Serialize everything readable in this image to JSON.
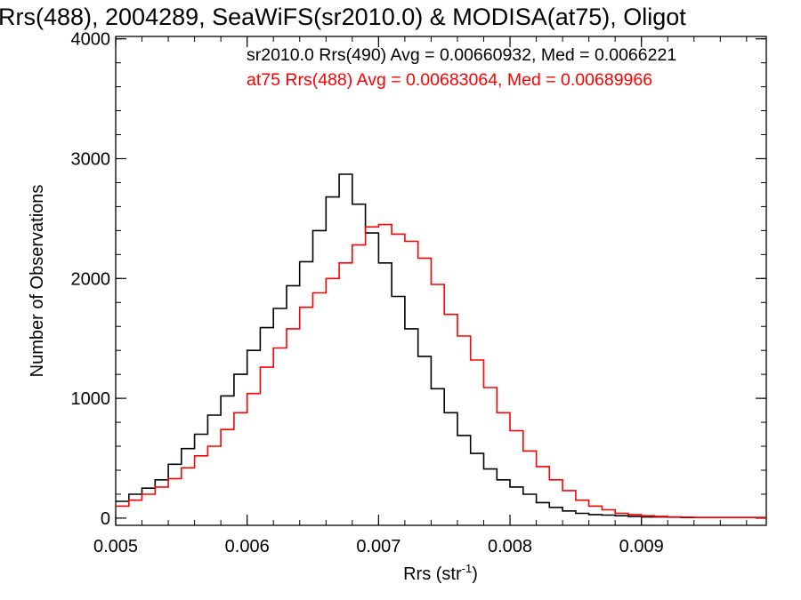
{
  "chart_data": {
    "type": "line",
    "title": "Rrs(488), 2004289, SeaWiFS(sr2010.0) & MODISA(at75), Oligot",
    "xlabel": "Rrs (str",
    "xlabel_sup": "-1",
    "xlabel_close": ")",
    "ylabel": "Number of Observations",
    "xlim": [
      0.005,
      0.00995
    ],
    "ylim": [
      -60,
      4020
    ],
    "x_ticks": [
      0.005,
      0.006,
      0.007,
      0.008,
      0.009
    ],
    "x_tick_labels": [
      "0.005",
      "0.006",
      "0.007",
      "0.008",
      "0.009"
    ],
    "y_ticks": [
      0,
      1000,
      2000,
      3000,
      4000
    ],
    "y_tick_labels": [
      "0",
      "1000",
      "2000",
      "3000",
      "4000"
    ],
    "annotations": [
      "sr2010.0 Rrs(490) Avg = 0.00660932, Med = 0.0066221",
      "at75 Rrs(488) Avg = 0.00683064, Med = 0.00689966"
    ],
    "series": [
      {
        "color": "#000000",
        "x": [
          0.005,
          0.0051,
          0.0052,
          0.0053,
          0.0054,
          0.0055,
          0.0056,
          0.0057,
          0.0058,
          0.0059,
          0.006,
          0.0061,
          0.0062,
          0.0063,
          0.0064,
          0.0065,
          0.0066,
          0.0067,
          0.0068,
          0.0069,
          0.007,
          0.0071,
          0.0072,
          0.0073,
          0.0074,
          0.0075,
          0.0076,
          0.0077,
          0.0078,
          0.0079,
          0.008,
          0.0081,
          0.0082,
          0.0083,
          0.0084,
          0.0085,
          0.0086,
          0.0087,
          0.0088,
          0.0089,
          0.009,
          0.0091,
          0.0092,
          0.0093,
          0.0094,
          0.0095,
          0.0096,
          0.0097,
          0.0098,
          0.0099
        ],
        "y": [
          140,
          200,
          250,
          320,
          450,
          580,
          700,
          860,
          1020,
          1200,
          1400,
          1590,
          1750,
          1940,
          2140,
          2400,
          2680,
          2870,
          2620,
          2380,
          2130,
          1850,
          1580,
          1350,
          1080,
          880,
          690,
          540,
          410,
          320,
          260,
          200,
          130,
          90,
          60,
          40,
          30,
          25,
          20,
          15,
          10,
          10,
          8,
          5,
          5,
          5,
          5,
          5,
          5,
          5
        ]
      },
      {
        "color": "#ff0000",
        "x": [
          0.005,
          0.0051,
          0.0052,
          0.0053,
          0.0054,
          0.0055,
          0.0056,
          0.0057,
          0.0058,
          0.0059,
          0.006,
          0.0061,
          0.0062,
          0.0063,
          0.0064,
          0.0065,
          0.0066,
          0.0067,
          0.0068,
          0.0069,
          0.007,
          0.0071,
          0.0072,
          0.0073,
          0.0074,
          0.0075,
          0.0076,
          0.0077,
          0.0078,
          0.0079,
          0.008,
          0.0081,
          0.0082,
          0.0083,
          0.0084,
          0.0085,
          0.0086,
          0.0087,
          0.0088,
          0.0089,
          0.009,
          0.0091,
          0.0092,
          0.0093,
          0.0094,
          0.0095,
          0.0096,
          0.0097,
          0.0098,
          0.0099
        ],
        "y": [
          100,
          150,
          200,
          260,
          330,
          420,
          520,
          600,
          740,
          880,
          1040,
          1260,
          1420,
          1580,
          1760,
          1880,
          2000,
          2130,
          2280,
          2430,
          2450,
          2370,
          2310,
          2170,
          1950,
          1700,
          1520,
          1320,
          1090,
          880,
          730,
          560,
          430,
          320,
          230,
          150,
          100,
          70,
          40,
          30,
          20,
          15,
          10,
          8,
          5,
          5,
          5,
          5,
          5,
          5
        ]
      }
    ]
  }
}
